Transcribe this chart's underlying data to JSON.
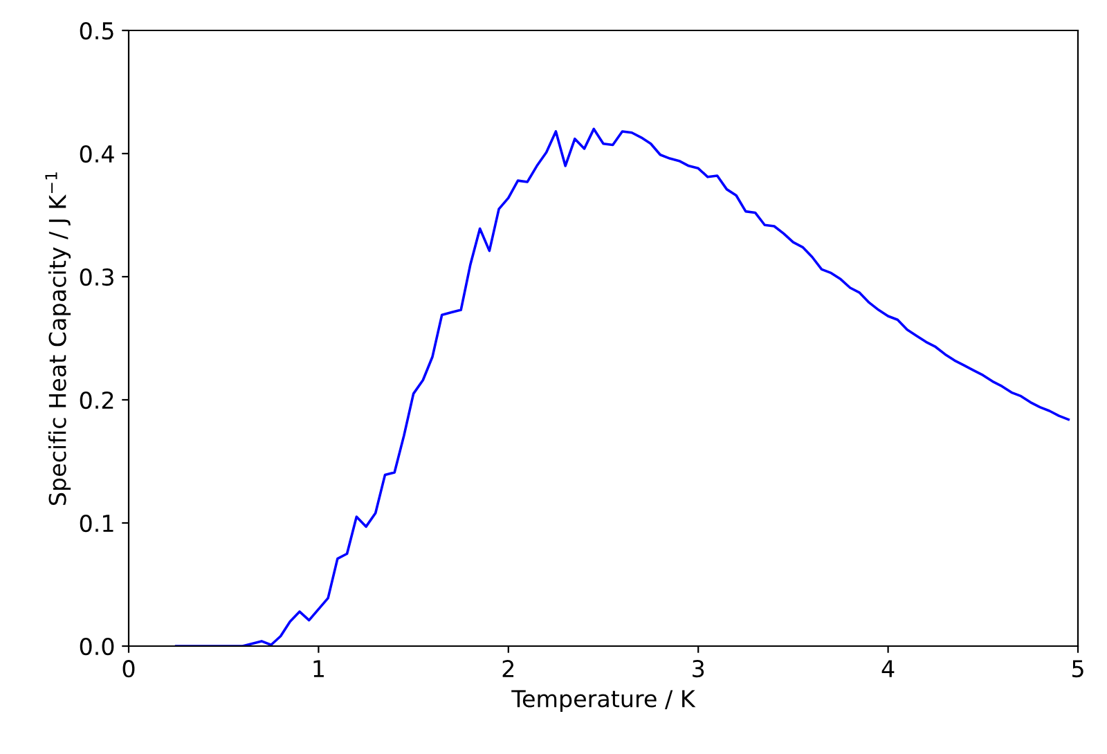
{
  "chart_data": {
    "type": "line",
    "xlabel": "Temperature / K",
    "ylabel": "Specific Heat Capacity / J K$^{−1}$",
    "x": [
      0.25,
      0.3,
      0.35,
      0.4,
      0.45,
      0.5,
      0.55,
      0.6,
      0.65,
      0.7,
      0.75,
      0.8,
      0.85,
      0.9,
      0.95,
      1.0,
      1.05,
      1.1,
      1.15,
      1.2,
      1.25,
      1.3,
      1.35,
      1.4,
      1.45,
      1.5,
      1.55,
      1.6,
      1.65,
      1.7,
      1.75,
      1.8,
      1.85,
      1.9,
      1.95,
      2.0,
      2.05,
      2.1,
      2.15,
      2.2,
      2.25,
      2.3,
      2.35,
      2.4,
      2.45,
      2.5,
      2.55,
      2.6,
      2.65,
      2.7,
      2.75,
      2.8,
      2.85,
      2.9,
      2.95,
      3.0,
      3.05,
      3.1,
      3.15,
      3.2,
      3.25,
      3.3,
      3.35,
      3.4,
      3.45,
      3.5,
      3.55,
      3.6,
      3.65,
      3.7,
      3.75,
      3.8,
      3.85,
      3.9,
      3.95,
      4.0,
      4.05,
      4.1,
      4.15,
      4.2,
      4.25,
      4.3,
      4.35,
      4.4,
      4.45,
      4.5,
      4.55,
      4.6,
      4.65,
      4.7,
      4.75,
      4.8,
      4.85,
      4.9,
      4.95
    ],
    "series": [
      {
        "color": "#0000ff",
        "values": [
          0,
          0,
          0,
          0,
          0,
          0,
          0,
          0,
          0.002,
          0.004,
          0.001,
          0.008,
          0.02,
          0.028,
          0.021,
          0.03,
          0.039,
          0.071,
          0.075,
          0.105,
          0.097,
          0.108,
          0.139,
          0.141,
          0.171,
          0.205,
          0.216,
          0.235,
          0.269,
          0.271,
          0.273,
          0.31,
          0.339,
          0.321,
          0.355,
          0.364,
          0.378,
          0.377,
          0.39,
          0.401,
          0.418,
          0.39,
          0.412,
          0.404,
          0.42,
          0.408,
          0.407,
          0.418,
          0.417,
          0.413,
          0.408,
          0.399,
          0.396,
          0.394,
          0.39,
          0.388,
          0.381,
          0.382,
          0.371,
          0.366,
          0.353,
          0.352,
          0.342,
          0.341,
          0.335,
          0.328,
          0.324,
          0.316,
          0.306,
          0.303,
          0.298,
          0.291,
          0.287,
          0.279,
          0.273,
          0.268,
          0.265,
          0.257,
          0.252,
          0.247,
          0.243,
          0.237,
          0.232,
          0.228,
          0.224,
          0.22,
          0.215,
          0.211,
          0.206,
          0.203,
          0.198,
          0.194,
          0.191,
          0.187,
          0.184
        ]
      }
    ],
    "xlim": [
      0,
      5
    ],
    "ylim": [
      0,
      0.5
    ],
    "xticks": [
      0,
      1,
      2,
      3,
      4,
      5
    ],
    "yticks": [
      {
        "value": 0,
        "label": "0.0"
      },
      0.1,
      0.2,
      0.3,
      0.4,
      0.5
    ],
    "grid": false,
    "marker": "none",
    "line_style": "solid"
  }
}
